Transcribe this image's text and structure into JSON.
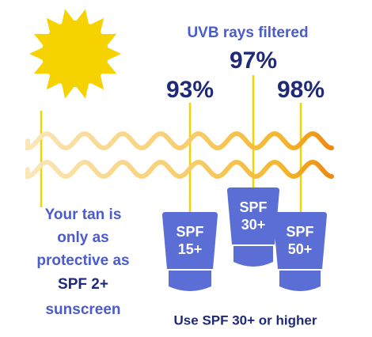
{
  "title": "UVB rays filtered",
  "bottles": [
    {
      "percent": "93%",
      "label": [
        "SPF",
        "15+"
      ]
    },
    {
      "percent": "97%",
      "label": [
        "SPF",
        "30+"
      ]
    },
    {
      "percent": "98%",
      "label": [
        "SPF",
        "50+"
      ]
    }
  ],
  "tan_note": [
    "Your tan is",
    "only as",
    "protective as",
    "SPF 2+",
    "sunscreen"
  ],
  "footer": "Use SPF 30+ or higher"
}
